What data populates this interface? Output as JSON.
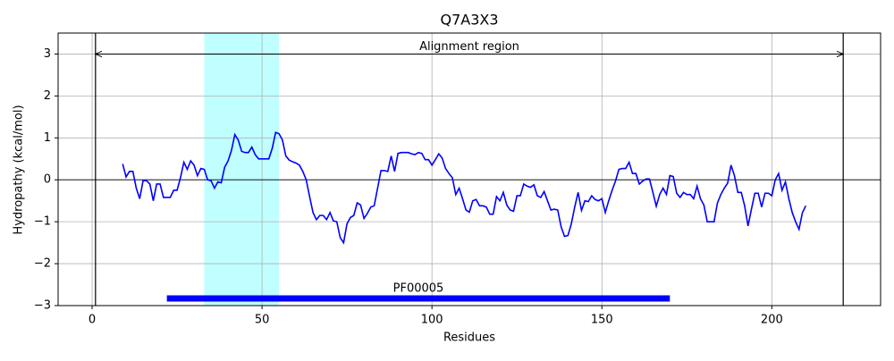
{
  "chart_data": {
    "type": "line",
    "title": "Q7A3X3",
    "x_label": "Residues",
    "y_label": "Hydropathy (kcal/mol)",
    "x": [
      9,
      10,
      11,
      12,
      13,
      14,
      15,
      16,
      17,
      18,
      19,
      20,
      21,
      22,
      23,
      24,
      25,
      26,
      27,
      28,
      29,
      30,
      31,
      32,
      33,
      34,
      35,
      36,
      37,
      38,
      39,
      40,
      41,
      42,
      43,
      44,
      45,
      46,
      47,
      48,
      49,
      50,
      51,
      52,
      53,
      54,
      55,
      56,
      57,
      58,
      59,
      60,
      61,
      62,
      63,
      64,
      65,
      66,
      67,
      68,
      69,
      70,
      71,
      72,
      73,
      74,
      75,
      76,
      77,
      78,
      79,
      80,
      81,
      82,
      83,
      84,
      85,
      86,
      87,
      88,
      89,
      90,
      91,
      92,
      93,
      94,
      95,
      96,
      97,
      98,
      99,
      100,
      101,
      102,
      103,
      104,
      105,
      106,
      107,
      108,
      109,
      110,
      111,
      112,
      113,
      114,
      115,
      116,
      117,
      118,
      119,
      120,
      121,
      122,
      123,
      124,
      125,
      126,
      127,
      128,
      129,
      130,
      131,
      132,
      133,
      134,
      135,
      136,
      137,
      138,
      139,
      140,
      141,
      142,
      143,
      144,
      145,
      146,
      147,
      148,
      149,
      150,
      151,
      152,
      153,
      154,
      155,
      156,
      157,
      158,
      159,
      160,
      161,
      162,
      163,
      164,
      165,
      166,
      167,
      168,
      169,
      170,
      171,
      172,
      173,
      174,
      175,
      176,
      177,
      178,
      179,
      180,
      181,
      182,
      183,
      184,
      185,
      186,
      187,
      188,
      189,
      190,
      191,
      192,
      193,
      194,
      195,
      196,
      197,
      198,
      199,
      200,
      201,
      202,
      203,
      204,
      205,
      206,
      207,
      208,
      209,
      210
    ],
    "series": [
      {
        "color": "#0000ff",
        "values": [
          0.38,
          0.07,
          0.2,
          0.2,
          -0.2,
          -0.45,
          -0.02,
          -0.02,
          -0.1,
          -0.5,
          -0.1,
          -0.1,
          -0.42,
          -0.42,
          -0.42,
          -0.25,
          -0.25,
          0.05,
          0.42,
          0.25,
          0.45,
          0.35,
          0.1,
          0.27,
          0.25,
          0.0,
          -0.02,
          -0.2,
          -0.05,
          -0.07,
          0.3,
          0.45,
          0.7,
          1.08,
          0.95,
          0.68,
          0.65,
          0.65,
          0.78,
          0.6,
          0.5,
          0.5,
          0.5,
          0.5,
          0.75,
          1.13,
          1.1,
          0.95,
          0.57,
          0.47,
          0.43,
          0.4,
          0.35,
          0.2,
          0.0,
          -0.4,
          -0.78,
          -0.95,
          -0.85,
          -0.85,
          -0.95,
          -0.78,
          -0.98,
          -1.0,
          -1.38,
          -1.5,
          -1.05,
          -0.9,
          -0.85,
          -0.55,
          -0.6,
          -0.92,
          -0.8,
          -0.65,
          -0.62,
          -0.2,
          0.22,
          0.22,
          0.2,
          0.57,
          0.2,
          0.63,
          0.65,
          0.65,
          0.65,
          0.62,
          0.6,
          0.65,
          0.63,
          0.48,
          0.48,
          0.35,
          0.48,
          0.62,
          0.52,
          0.27,
          0.15,
          0.05,
          -0.35,
          -0.2,
          -0.45,
          -0.72,
          -0.77,
          -0.5,
          -0.47,
          -0.62,
          -0.62,
          -0.65,
          -0.82,
          -0.82,
          -0.4,
          -0.5,
          -0.3,
          -0.6,
          -0.72,
          -0.75,
          -0.38,
          -0.38,
          -0.1,
          -0.15,
          -0.18,
          -0.12,
          -0.38,
          -0.42,
          -0.28,
          -0.5,
          -0.72,
          -0.7,
          -0.72,
          -1.12,
          -1.35,
          -1.33,
          -1.05,
          -0.65,
          -0.3,
          -0.73,
          -0.5,
          -0.52,
          -0.38,
          -0.47,
          -0.5,
          -0.45,
          -0.78,
          -0.5,
          -0.25,
          -0.03,
          0.25,
          0.27,
          0.27,
          0.42,
          0.15,
          0.15,
          -0.1,
          -0.03,
          0.02,
          0.02,
          -0.3,
          -0.63,
          -0.35,
          -0.2,
          -0.35,
          0.1,
          0.08,
          -0.32,
          -0.42,
          -0.3,
          -0.35,
          -0.35,
          -0.45,
          -0.15,
          -0.45,
          -0.6,
          -1.0,
          -1.0,
          -1.0,
          -0.55,
          -0.35,
          -0.2,
          -0.08,
          0.35,
          0.1,
          -0.3,
          -0.3,
          -0.62,
          -1.1,
          -0.7,
          -0.32,
          -0.32,
          -0.65,
          -0.32,
          -0.32,
          -0.38,
          0.0,
          0.15,
          -0.25,
          -0.05,
          -0.45,
          -0.78,
          -1.0,
          -1.18,
          -0.78,
          -0.62
        ]
      }
    ],
    "xlim": [
      -10,
      232
    ],
    "ylim": [
      -3,
      3.5
    ],
    "xticks": [
      0,
      50,
      100,
      150,
      200
    ],
    "yticks": [
      {
        "value": -3,
        "label": "−3"
      },
      {
        "value": -2,
        "label": "−2"
      },
      {
        "value": -1,
        "label": "−1"
      },
      0,
      1,
      2,
      3
    ],
    "grid": true,
    "highlight": {
      "start": 33,
      "end": 55,
      "color": "#c0ffff"
    },
    "zero_line": 0,
    "vlines": [
      1,
      221
    ],
    "alignment": {
      "label": "Alignment region",
      "start": 1,
      "end": 221,
      "y": 3
    },
    "domains": [
      {
        "name": "PF00005",
        "start": 22,
        "end": 170,
        "y": -2.83,
        "color": "#0000ff"
      }
    ]
  }
}
